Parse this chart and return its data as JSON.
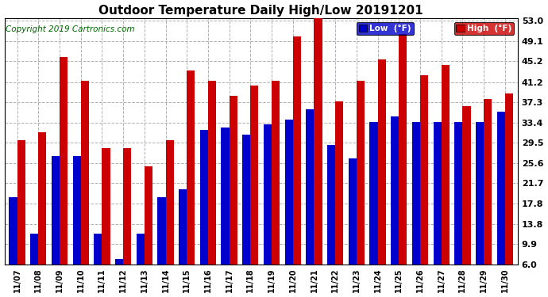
{
  "title": "Outdoor Temperature Daily High/Low 20191201",
  "copyright": "Copyright 2019 Cartronics.com",
  "legend_low": "Low  (°F)",
  "legend_high": "High  (°F)",
  "dates": [
    "11/07",
    "11/08",
    "11/09",
    "11/10",
    "11/11",
    "11/12",
    "11/13",
    "11/14",
    "11/15",
    "11/16",
    "11/17",
    "11/18",
    "11/19",
    "11/20",
    "11/21",
    "11/22",
    "11/23",
    "11/24",
    "11/25",
    "11/26",
    "11/27",
    "11/28",
    "11/29",
    "11/30"
  ],
  "low": [
    19.0,
    12.0,
    27.0,
    27.0,
    12.0,
    7.0,
    12.0,
    19.0,
    20.5,
    32.0,
    32.5,
    31.0,
    33.0,
    34.0,
    36.0,
    29.0,
    26.5,
    33.5,
    34.5,
    33.5,
    33.5,
    33.5,
    33.5,
    35.5
  ],
  "high": [
    30.0,
    31.5,
    46.0,
    41.5,
    28.5,
    28.5,
    25.0,
    30.0,
    43.5,
    41.5,
    38.5,
    40.5,
    41.5,
    50.0,
    53.5,
    37.5,
    41.5,
    45.5,
    50.5,
    42.5,
    44.5,
    36.5,
    38.0,
    39.0
  ],
  "ylim_min": 6.0,
  "ylim_max": 53.0,
  "yticks": [
    6.0,
    9.9,
    13.8,
    17.8,
    21.7,
    25.6,
    29.5,
    33.4,
    37.3,
    41.2,
    45.2,
    49.1,
    53.0
  ],
  "low_color": "#0000cc",
  "high_color": "#cc0000",
  "bg_color": "#ffffff",
  "grid_color": "#b0b0b0",
  "title_fontsize": 11,
  "copyright_fontsize": 7.5,
  "bar_width": 0.38
}
